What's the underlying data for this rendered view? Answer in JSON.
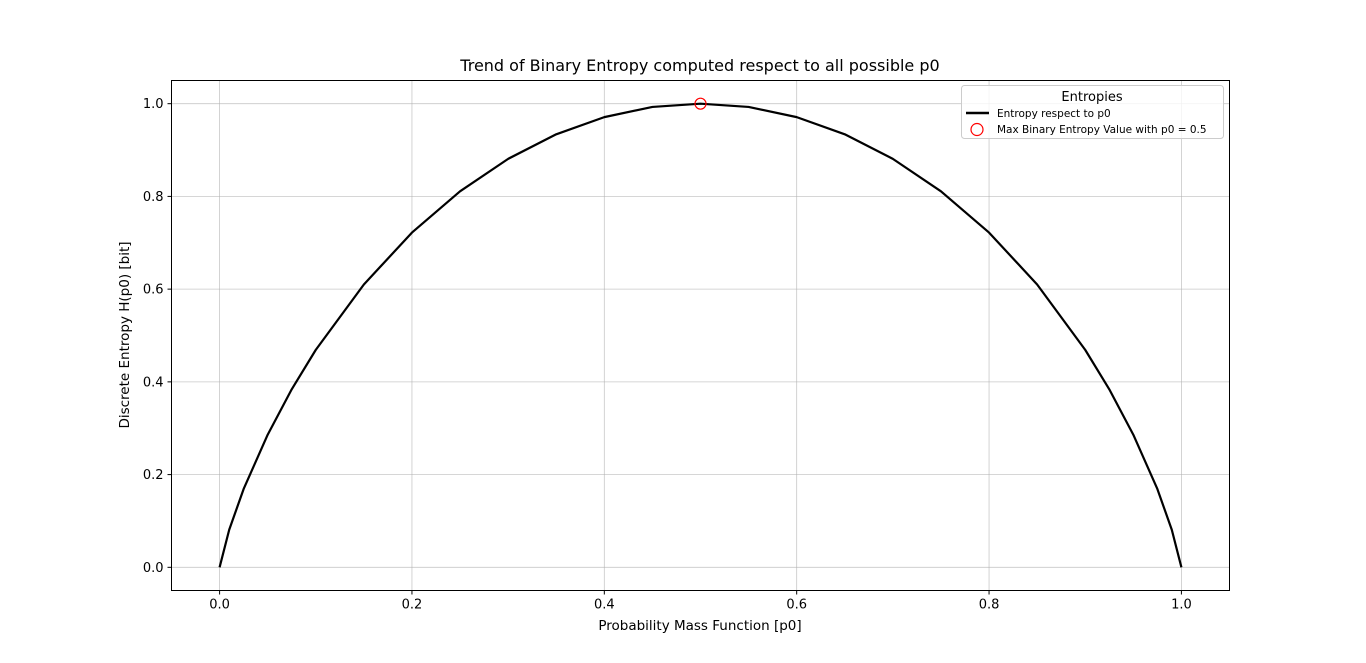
{
  "chart_data": {
    "type": "line",
    "title": "Trend of Binary Entropy computed respect to all possible p0",
    "xlabel": "Probability Mass Function [p0]",
    "ylabel": "Discrete Entropy H(p0) [bit]",
    "xlim": [
      -0.05,
      1.05
    ],
    "ylim": [
      -0.05,
      1.05
    ],
    "x_ticks": [
      "0.0",
      "0.2",
      "0.4",
      "0.6",
      "0.8",
      "1.0"
    ],
    "y_ticks": [
      "0.0",
      "0.2",
      "0.4",
      "0.6",
      "0.8",
      "1.0"
    ],
    "grid": true,
    "legend": {
      "title": "Entropies",
      "placement": "top-right",
      "entries": [
        "Entropy respect to p0",
        "Max Binary Entropy Value with p0 = 0.5"
      ]
    },
    "series": [
      {
        "name": "Entropy respect to p0",
        "style": "line",
        "color": "#000000",
        "x": [
          0.0,
          0.01,
          0.025,
          0.05,
          0.075,
          0.1,
          0.15,
          0.2,
          0.25,
          0.3,
          0.35,
          0.4,
          0.45,
          0.5,
          0.55,
          0.6,
          0.65,
          0.7,
          0.75,
          0.8,
          0.85,
          0.9,
          0.925,
          0.95,
          0.975,
          0.99,
          1.0
        ],
        "y": [
          0.0,
          0.081,
          0.169,
          0.286,
          0.384,
          0.469,
          0.61,
          0.722,
          0.811,
          0.881,
          0.934,
          0.971,
          0.993,
          1.0,
          0.993,
          0.971,
          0.934,
          0.881,
          0.811,
          0.722,
          0.61,
          0.469,
          0.384,
          0.286,
          0.169,
          0.081,
          0.0
        ]
      },
      {
        "name": "Max Binary Entropy Value with p0 = 0.5",
        "style": "marker",
        "marker": "hollow-circle",
        "color": "#ff0000",
        "x": [
          0.5
        ],
        "y": [
          1.0
        ]
      }
    ]
  }
}
